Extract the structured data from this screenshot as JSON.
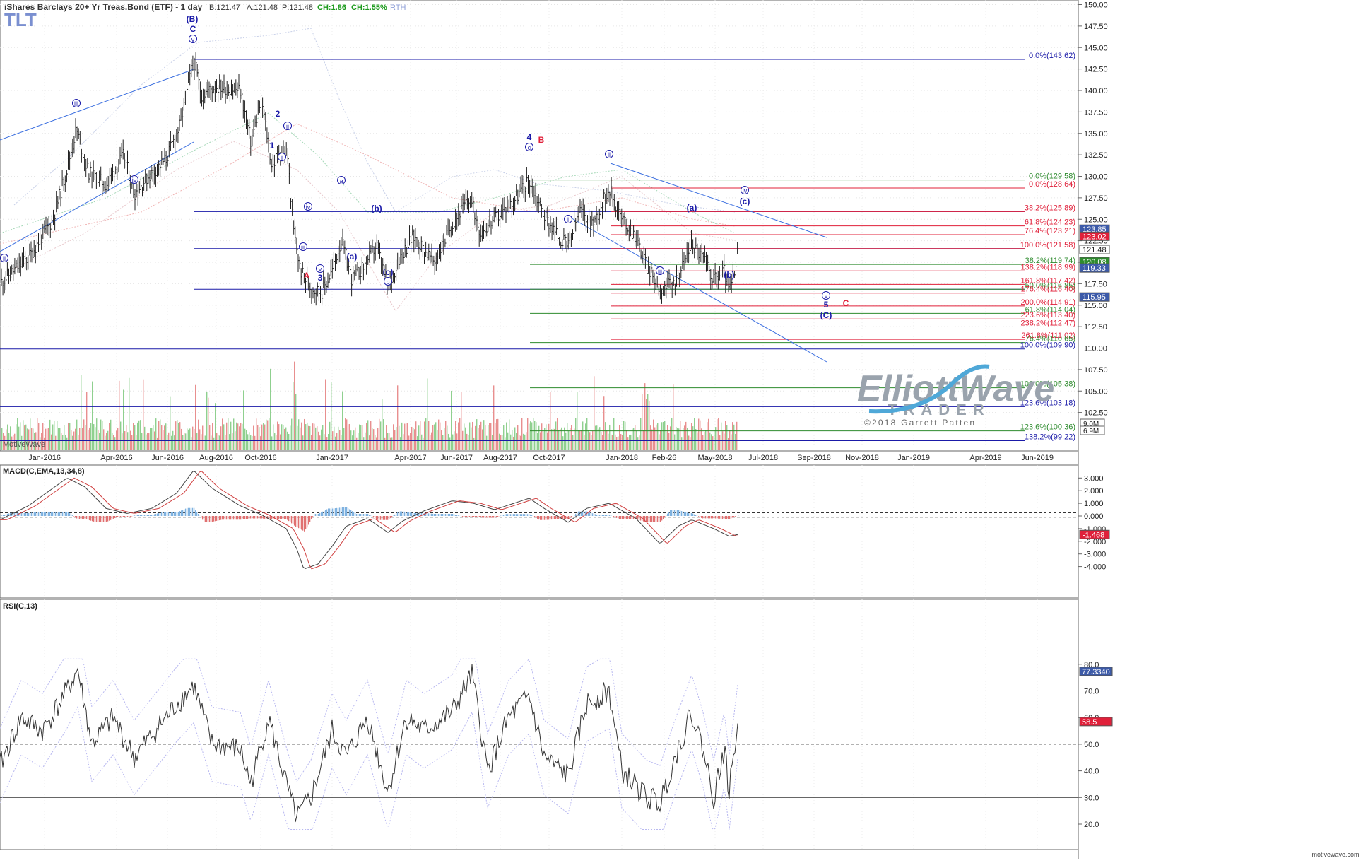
{
  "header": {
    "ticker": "TLT",
    "title": "iShares Barclays 20+ Yr Treas.Bond (ETF) - 1 day",
    "bid": "B:121.47",
    "ask": "A:121.48",
    "price": "P:121.48",
    "change": "CH:1.86",
    "change_pct": "CH:1.55%",
    "session": "RTH",
    "watermark": "MotiveWave",
    "footer_site": "motivewave.com"
  },
  "logo": {
    "line1": "ElliottWave",
    "line2": "TRADER",
    "copyright": "©2018 Garrett Patten"
  },
  "colors": {
    "price_bar": "#222222",
    "blue_line": "#1a1aa8",
    "red_line": "#e0203a",
    "green_line": "#2e8b2e",
    "trend_line": "#3b6fe0",
    "volume": "#e88f8f",
    "macd_pos": "#7fb2e0",
    "macd_neg": "#e07070"
  },
  "price_axis": {
    "ticks": [
      "150.00",
      "147.50",
      "145.00",
      "142.50",
      "140.00",
      "137.50",
      "135.00",
      "132.50",
      "130.00",
      "127.50",
      "125.00",
      "122.50",
      "120.00",
      "117.50",
      "115.00",
      "112.50",
      "110.00",
      "107.50",
      "105.00",
      "102.50"
    ],
    "tick_values": [
      150,
      147.5,
      145,
      142.5,
      140,
      137.5,
      135,
      132.5,
      130,
      127.5,
      125,
      122.5,
      120,
      117.5,
      115,
      112.5,
      110,
      107.5,
      105,
      102.5
    ],
    "badges": [
      {
        "text": "123.85",
        "value": 123.85,
        "bg": "#3c5aa8"
      },
      {
        "text": "123.02",
        "value": 123.02,
        "bg": "#e0203a"
      },
      {
        "text": "121.48",
        "value": 121.48,
        "bg": "#ffffff"
      },
      {
        "text": "120.08",
        "value": 120.08,
        "bg": "#2e8b2e"
      },
      {
        "text": "119.33",
        "value": 119.33,
        "bg": "#3c5aa8"
      },
      {
        "text": "115.95",
        "value": 115.95,
        "bg": "#3c5aa8"
      }
    ],
    "volume_badges": [
      "9.0M",
      "6.9M"
    ]
  },
  "time_axis": {
    "labels": [
      "Jan-2016",
      "Apr-2016",
      "Jun-2016",
      "Aug-2016",
      "Oct-2016",
      "Jan-2017",
      "Apr-2017",
      "Jun-2017",
      "Aug-2017",
      "Oct-2017",
      "Jan-2018",
      "Feb-26",
      "May-2018",
      "Jul-2018",
      "Sep-2018",
      "Nov-2018",
      "Jan-2019",
      "Apr-2019",
      "Jun-2019"
    ]
  },
  "fib_levels": [
    {
      "label": "0.0%(143.62)",
      "value": 143.62,
      "color": "#1a1aa8",
      "x1": 274
    },
    {
      "label": "0.0%(129.58)",
      "value": 129.58,
      "color": "#2e8b2e",
      "x1": 750
    },
    {
      "label": "0.0%(128.64)",
      "value": 128.64,
      "color": "#e0203a",
      "x1": 864
    },
    {
      "label": "38.2%(125.89)",
      "value": 125.89,
      "color": "#e0203a",
      "x1": 864
    },
    {
      "label": "61.8%(124.23)",
      "value": 124.23,
      "color": "#e0203a",
      "x1": 864
    },
    {
      "label": "76.4%(123.21)",
      "value": 123.21,
      "color": "#e0203a",
      "x1": 864
    },
    {
      "label": "100.0%(121.58)",
      "value": 121.58,
      "color": "#e0203a",
      "x1": 864
    },
    {
      "label": "38.2%(119.74)",
      "value": 119.74,
      "color": "#2e8b2e",
      "x1": 750
    },
    {
      "label": "138.2%(118.99)",
      "value": 118.99,
      "color": "#e0203a",
      "x1": 864
    },
    {
      "label": "161.8%(117.42)",
      "value": 117.42,
      "color": "#e0203a",
      "x1": 864
    },
    {
      "label": "50.0%(116.85)",
      "value": 116.85,
      "color": "#2e8b2e",
      "x1": 750
    },
    {
      "label": "176.4%(116.40)",
      "value": 116.4,
      "color": "#e0203a",
      "x1": 864
    },
    {
      "label": "200.0%(114.91)",
      "value": 114.91,
      "color": "#e0203a",
      "x1": 864
    },
    {
      "label": "61.8%(114.04)",
      "value": 114.04,
      "color": "#2e8b2e",
      "x1": 750
    },
    {
      "label": "223.6%(113.40)",
      "value": 113.4,
      "color": "#e0203a",
      "x1": 864
    },
    {
      "label": "238.2%(112.47)",
      "value": 112.47,
      "color": "#e0203a",
      "x1": 864
    },
    {
      "label": "261.8%(111.02)",
      "value": 111.02,
      "color": "#e0203a",
      "x1": 864
    },
    {
      "label": "76.4%(110.65)",
      "value": 110.65,
      "color": "#2e8b2e",
      "x1": 750
    },
    {
      "label": "100.0%(109.90)",
      "value": 109.9,
      "color": "#1a1aa8",
      "x1": 0
    },
    {
      "label": "100.0%(105.38)",
      "value": 105.38,
      "color": "#2e8b2e",
      "x1": 750
    },
    {
      "label": "123.6%(103.18)",
      "value": 103.18,
      "color": "#1a1aa8",
      "x1": 0
    },
    {
      "label": "123.6%(100.36)",
      "value": 100.36,
      "color": "#2e8b2e",
      "x1": 750
    },
    {
      "label": "138.2%(99.22)",
      "value": 99.22,
      "color": "#1a1aa8",
      "x1": 0
    }
  ],
  "support_lines": [
    {
      "value": 125.89,
      "color": "#1a1aa8",
      "x1": 274
    },
    {
      "value": 121.58,
      "color": "#1a1aa8",
      "x1": 274
    },
    {
      "value": 116.85,
      "color": "#1a1aa8",
      "x1": 274
    }
  ],
  "wave_labels": [
    {
      "text": "(B)",
      "x": 272,
      "y": 31,
      "color": "#1a1aa8",
      "circle": false
    },
    {
      "text": "C",
      "x": 273,
      "y": 45,
      "color": "#1a1aa8",
      "circle": false
    },
    {
      "text": "v",
      "x": 273,
      "y": 59,
      "color": "#1a1aa8",
      "circle": true
    },
    {
      "text": "iii",
      "x": 108,
      "y": 150,
      "color": "#1a1aa8",
      "circle": true
    },
    {
      "text": "iv",
      "x": 190,
      "y": 258,
      "color": "#1a1aa8",
      "circle": true
    },
    {
      "text": "ii",
      "x": 6,
      "y": 369,
      "color": "#1a1aa8",
      "circle": true
    },
    {
      "text": "2",
      "x": 393,
      "y": 165,
      "color": "#1a1aa8",
      "circle": false
    },
    {
      "text": "ii",
      "x": 407,
      "y": 182,
      "color": "#1a1aa8",
      "circle": true
    },
    {
      "text": "1",
      "x": 385,
      "y": 210,
      "color": "#1a1aa8",
      "circle": false
    },
    {
      "text": "i",
      "x": 399,
      "y": 226,
      "color": "#1a1aa8",
      "circle": true
    },
    {
      "text": "iv",
      "x": 436,
      "y": 296,
      "color": "#1a1aa8",
      "circle": true
    },
    {
      "text": "iii",
      "x": 429,
      "y": 353,
      "color": "#1a1aa8",
      "circle": true
    },
    {
      "text": "A",
      "x": 434,
      "y": 394,
      "color": "#e0203a",
      "circle": false
    },
    {
      "text": "v",
      "x": 453,
      "y": 384,
      "color": "#1a1aa8",
      "circle": true
    },
    {
      "text": "3",
      "x": 453,
      "y": 397,
      "color": "#1a1aa8",
      "circle": false
    },
    {
      "text": "a",
      "x": 483,
      "y": 259,
      "color": "#1a1aa8",
      "circle": true
    },
    {
      "text": "(a)",
      "x": 498,
      "y": 367,
      "color": "#1a1aa8",
      "circle": false
    },
    {
      "text": "(b)",
      "x": 533,
      "y": 299,
      "color": "#1a1aa8",
      "circle": false
    },
    {
      "text": "(c)",
      "x": 549,
      "y": 389,
      "color": "#1a1aa8",
      "circle": false
    },
    {
      "text": "b",
      "x": 549,
      "y": 402,
      "color": "#1a1aa8",
      "circle": true
    },
    {
      "text": "4",
      "x": 749,
      "y": 198,
      "color": "#1a1aa8",
      "circle": false
    },
    {
      "text": "B",
      "x": 766,
      "y": 202,
      "color": "#e0203a",
      "circle": false
    },
    {
      "text": "c",
      "x": 749,
      "y": 212,
      "color": "#1a1aa8",
      "circle": true
    },
    {
      "text": "i",
      "x": 804,
      "y": 314,
      "color": "#1a1aa8",
      "circle": true
    },
    {
      "text": "ii",
      "x": 862,
      "y": 222,
      "color": "#1a1aa8",
      "circle": true
    },
    {
      "text": "(a)",
      "x": 979,
      "y": 298,
      "color": "#1a1aa8",
      "circle": false
    },
    {
      "text": "iii",
      "x": 934,
      "y": 387,
      "color": "#1a1aa8",
      "circle": true
    },
    {
      "text": "(b)",
      "x": 1032,
      "y": 393,
      "color": "#1a1aa8",
      "circle": false
    },
    {
      "text": "iv",
      "x": 1054,
      "y": 273,
      "color": "#1a1aa8",
      "circle": true
    },
    {
      "text": "(c)",
      "x": 1054,
      "y": 289,
      "color": "#1a1aa8",
      "circle": false
    },
    {
      "text": "v",
      "x": 1169,
      "y": 422,
      "color": "#1a1aa8",
      "circle": true
    },
    {
      "text": "5",
      "x": 1169,
      "y": 435,
      "color": "#1a1aa8",
      "circle": false
    },
    {
      "text": "C",
      "x": 1197,
      "y": 433,
      "color": "#e0203a",
      "circle": false
    },
    {
      "text": "(C)",
      "x": 1169,
      "y": 450,
      "color": "#1a1aa8",
      "circle": false
    }
  ],
  "trend_lines": [
    {
      "x1": 0,
      "y1": 198,
      "x2": 274,
      "y2": 98
    },
    {
      "x1": 0,
      "y1": 356,
      "x2": 274,
      "y2": 201
    },
    {
      "x1": 864,
      "y1": 231,
      "x2": 1170,
      "y2": 336
    },
    {
      "x1": 804,
      "y1": 306,
      "x2": 1170,
      "y2": 512
    }
  ],
  "macd": {
    "label": "MACD(C,EMA,13,34,8)",
    "ticks": [
      "3.000",
      "2.000",
      "1.000",
      "0.000",
      "-1.000",
      "-2.000",
      "-3.000",
      "-4.000"
    ],
    "tick_values": [
      3,
      2,
      1,
      0,
      -1,
      -2,
      -3,
      -4
    ],
    "badge": "-1.468",
    "badge_value": -1.468,
    "top_level": 0.25,
    "bottom_level": -0.1
  },
  "rsi": {
    "label": "RSI(C,13)",
    "ticks": [
      "80.0",
      "70.0",
      "60.0",
      "50.0",
      "40.0",
      "30.0",
      "20.0"
    ],
    "tick_values": [
      80,
      70,
      60,
      50,
      40,
      30,
      20
    ],
    "badges": [
      {
        "text": "77.3340",
        "value": 77.334,
        "bg": "#3c5aa8"
      },
      {
        "text": "58.5",
        "value": 58.5,
        "bg": "#e0203a"
      }
    ],
    "levels": [
      70,
      50,
      30
    ]
  },
  "chart_data": {
    "type": "bar",
    "title": "iShares Barclays 20+ Yr Treas.Bond (ETF) - 1 day",
    "symbol": "TLT",
    "ylim": [
      99,
      150.5
    ],
    "price_path": [
      [
        0,
        117.6
      ],
      [
        40,
        120.5
      ],
      [
        75,
        125
      ],
      [
        95,
        131
      ],
      [
        108,
        135.5
      ],
      [
        125,
        130.5
      ],
      [
        150,
        129
      ],
      [
        175,
        132.5
      ],
      [
        190,
        128
      ],
      [
        210,
        130
      ],
      [
        235,
        132
      ],
      [
        255,
        136
      ],
      [
        265,
        140
      ],
      [
        274,
        143.6
      ],
      [
        285,
        139.5
      ],
      [
        305,
        140.5
      ],
      [
        340,
        140
      ],
      [
        355,
        134
      ],
      [
        370,
        139
      ],
      [
        385,
        131
      ],
      [
        395,
        133
      ],
      [
        407,
        132.5
      ],
      [
        415,
        124
      ],
      [
        425,
        119
      ],
      [
        440,
        117
      ],
      [
        455,
        116.5
      ],
      [
        470,
        119
      ],
      [
        483,
        122.5
      ],
      [
        498,
        118
      ],
      [
        515,
        119.5
      ],
      [
        533,
        122
      ],
      [
        549,
        116.9
      ],
      [
        565,
        120.5
      ],
      [
        585,
        123
      ],
      [
        600,
        121.5
      ],
      [
        615,
        120
      ],
      [
        640,
        124.5
      ],
      [
        665,
        127.5
      ],
      [
        680,
        123.5
      ],
      [
        700,
        125
      ],
      [
        725,
        127
      ],
      [
        749,
        129.6
      ],
      [
        770,
        125.5
      ],
      [
        790,
        123
      ],
      [
        804,
        121.8
      ],
      [
        820,
        126
      ],
      [
        840,
        124.5
      ],
      [
        862,
        128.7
      ],
      [
        880,
        125
      ],
      [
        900,
        123
      ],
      [
        915,
        119.5
      ],
      [
        934,
        117
      ],
      [
        955,
        117.5
      ],
      [
        979,
        122.2
      ],
      [
        995,
        120.5
      ],
      [
        1010,
        118
      ],
      [
        1025,
        119
      ],
      [
        1032,
        116.6
      ],
      [
        1040,
        118.5
      ],
      [
        1044,
        121.48
      ]
    ],
    "macd_path": [
      [
        0,
        -0.3
      ],
      [
        40,
        0.8
      ],
      [
        75,
        2.2
      ],
      [
        95,
        3.0
      ],
      [
        120,
        2.3
      ],
      [
        150,
        0.6
      ],
      [
        180,
        0.2
      ],
      [
        215,
        0.6
      ],
      [
        250,
        1.8
      ],
      [
        274,
        3.6
      ],
      [
        300,
        2.2
      ],
      [
        340,
        0.8
      ],
      [
        370,
        0.1
      ],
      [
        405,
        -1.0
      ],
      [
        420,
        -2.6
      ],
      [
        430,
        -4.2
      ],
      [
        450,
        -3.8
      ],
      [
        470,
        -2.4
      ],
      [
        490,
        -0.8
      ],
      [
        520,
        -0.2
      ],
      [
        549,
        -1.3
      ],
      [
        570,
        -0.4
      ],
      [
        600,
        0.4
      ],
      [
        640,
        1.2
      ],
      [
        670,
        1.0
      ],
      [
        700,
        0.5
      ],
      [
        749,
        1.4
      ],
      [
        770,
        0.6
      ],
      [
        804,
        -0.5
      ],
      [
        830,
        0.6
      ],
      [
        862,
        1.0
      ],
      [
        900,
        -0.2
      ],
      [
        934,
        -2.2
      ],
      [
        960,
        -0.8
      ],
      [
        979,
        -0.3
      ],
      [
        1010,
        -1.0
      ],
      [
        1032,
        -1.6
      ],
      [
        1044,
        -1.468
      ]
    ],
    "rsi_path": [
      [
        0,
        42
      ],
      [
        30,
        60
      ],
      [
        60,
        55
      ],
      [
        95,
        70
      ],
      [
        110,
        78
      ],
      [
        130,
        50
      ],
      [
        160,
        60
      ],
      [
        190,
        45
      ],
      [
        220,
        55
      ],
      [
        250,
        65
      ],
      [
        274,
        72
      ],
      [
        300,
        50
      ],
      [
        340,
        48
      ],
      [
        355,
        35
      ],
      [
        380,
        60
      ],
      [
        405,
        35
      ],
      [
        420,
        22
      ],
      [
        440,
        30
      ],
      [
        470,
        55
      ],
      [
        490,
        45
      ],
      [
        520,
        60
      ],
      [
        549,
        32
      ],
      [
        575,
        60
      ],
      [
        600,
        55
      ],
      [
        640,
        62
      ],
      [
        668,
        76
      ],
      [
        690,
        40
      ],
      [
        720,
        60
      ],
      [
        749,
        68
      ],
      [
        770,
        45
      ],
      [
        804,
        38
      ],
      [
        830,
        65
      ],
      [
        862,
        70
      ],
      [
        880,
        40
      ],
      [
        915,
        30
      ],
      [
        934,
        28
      ],
      [
        955,
        45
      ],
      [
        979,
        62
      ],
      [
        995,
        48
      ],
      [
        1010,
        30
      ],
      [
        1025,
        48
      ],
      [
        1032,
        32
      ],
      [
        1044,
        58.5
      ]
    ]
  }
}
